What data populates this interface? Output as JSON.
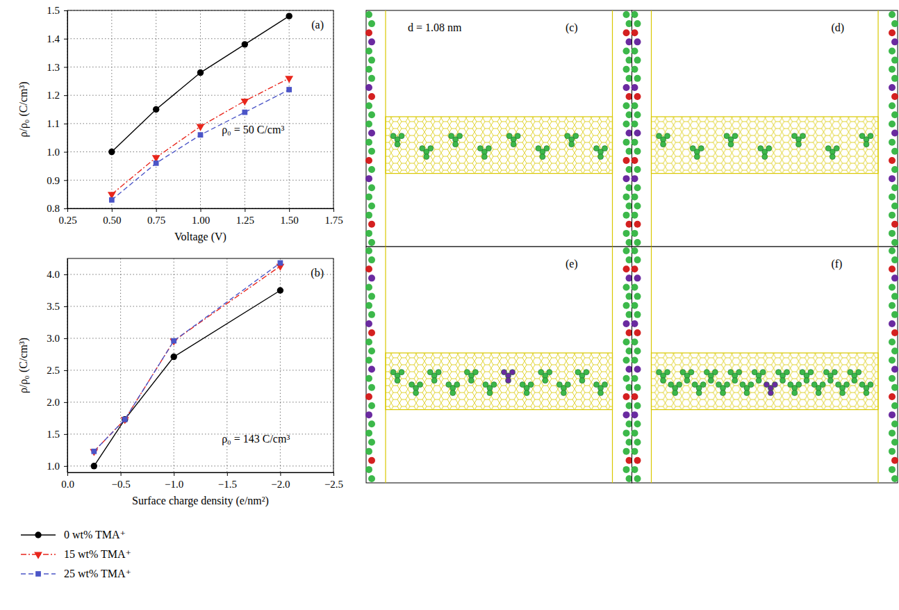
{
  "chart_data": [
    {
      "type": "line",
      "panel": "(a)",
      "annotation": "ρ₀ = 50 C/cm³",
      "x_label": "Voltage (V)",
      "y_label": "ρ/ρ₀ (C/cm³)",
      "x": [
        0.5,
        0.75,
        1.0,
        1.25,
        1.5
      ],
      "series": [
        {
          "color": "#000000",
          "marker": "circle",
          "line_style": "solid",
          "values": [
            1.0,
            1.15,
            1.28,
            1.38,
            1.48
          ]
        },
        {
          "color": "#e8261c",
          "marker": "triangle-down",
          "line_style": "dashdot",
          "values": [
            0.85,
            0.98,
            1.09,
            1.18,
            1.26
          ]
        },
        {
          "color": "#4b55c7",
          "marker": "square",
          "line_style": "dashed",
          "values": [
            0.83,
            0.96,
            1.06,
            1.14,
            1.22
          ]
        }
      ],
      "xlim": [
        0.25,
        1.75
      ],
      "xticks": [
        0.25,
        {
          "value": 0.5,
          "label": "0.50"
        },
        0.75,
        {
          "value": 1.0,
          "label": "1.00"
        },
        1.25,
        {
          "value": 1.5,
          "label": "1.50"
        },
        1.75
      ],
      "ylim": [
        0.8,
        1.5
      ],
      "yticks": [
        0.8,
        0.9,
        {
          "value": 1.0,
          "label": "1.0"
        },
        1.1,
        1.2,
        1.3,
        1.4,
        1.5
      ],
      "grid": true
    },
    {
      "type": "line",
      "panel": "(b)",
      "annotation": "ρ₀ = 143 C/cm³",
      "x_label": "Surface charge density (e/nm²)",
      "y_label": "ρ/ρ₀ (C/cm³)",
      "x": [
        -0.25,
        -0.54,
        -1.0,
        -2.0
      ],
      "series": [
        {
          "name": "0 wt% TMA⁺",
          "color": "#000000",
          "marker": "circle",
          "line_style": "solid",
          "values": [
            1.0,
            1.73,
            2.71,
            3.75
          ]
        },
        {
          "name": "15 wt% TMA⁺",
          "color": "#e8261c",
          "marker": "triangle-down",
          "line_style": "dashdot",
          "values": [
            1.23,
            1.73,
            2.96,
            4.13
          ]
        },
        {
          "name": "25 wt% TMA⁺",
          "color": "#4b55c7",
          "marker": "square",
          "line_style": "dashed",
          "values": [
            1.23,
            1.73,
            2.96,
            4.18
          ]
        }
      ],
      "xlim": [
        0,
        -2.5
      ],
      "xticks": [
        {
          "value": 0,
          "label": "0.0"
        },
        {
          "value": -0.5,
          "label": "−0.5"
        },
        {
          "value": -1.0,
          "label": "−1.0"
        },
        {
          "value": -1.5,
          "label": "−1.5"
        },
        {
          "value": -2.0,
          "label": "−2.0"
        },
        {
          "value": -2.5,
          "label": "−2.5"
        }
      ],
      "ylim": [
        0.9,
        4.25
      ],
      "yticks": [
        {
          "value": 1.0,
          "label": "1.0"
        },
        1.5,
        {
          "value": 2.0,
          "label": "2.0"
        },
        2.5,
        {
          "value": 3.0,
          "label": "3.0"
        },
        3.5,
        {
          "value": 4.0,
          "label": "4.0"
        }
      ],
      "grid": true,
      "legend": "bottom"
    }
  ],
  "snapshots": {
    "panel_labels": [
      "(c)",
      "(d)",
      "(e)",
      "(f)"
    ],
    "annotation": "d = 1.08 nm"
  }
}
